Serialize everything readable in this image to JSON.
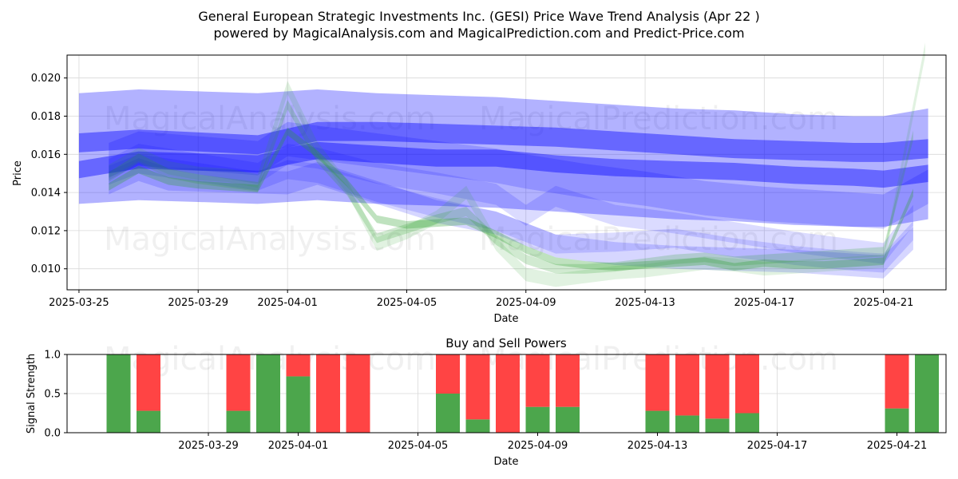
{
  "title": "General European Strategic Investments Inc. (GESI) Price Wave Trend Analysis (Apr 22 )",
  "subtitle": "powered by MagicalAnalysis.com and MagicalPrediction.com and Predict-Price.com",
  "watermarks": [
    "MagicalAnalysis.com",
    "MagicalPrediction.com"
  ],
  "colors": {
    "blue": "#0000ff",
    "green": "#2ca02c",
    "buy": "#4ca64c",
    "sell": "#ff4444"
  },
  "chart_data": [
    {
      "type": "area",
      "xlabel": "Date",
      "ylabel": "Price",
      "xlim": [
        -0.4,
        29.1
      ],
      "ylim": [
        0.0089,
        0.0212
      ],
      "x_tick_days": [
        0,
        4,
        7,
        11,
        15,
        19,
        23,
        27
      ],
      "x_tick_labels": [
        "2025-03-25",
        "2025-03-29",
        "2025-04-01",
        "2025-04-05",
        "2025-04-09",
        "2025-04-13",
        "2025-04-17",
        "2025-04-21"
      ],
      "y_ticks": [
        0.01,
        0.012,
        0.014,
        0.016,
        0.018,
        0.02
      ],
      "y_tick_labels": [
        "0.010",
        "0.012",
        "0.014",
        "0.016",
        "0.018",
        "0.020"
      ],
      "grid": true,
      "blue_bands": [
        {
          "x": [
            0,
            2,
            6,
            8,
            10,
            12,
            14,
            16,
            18,
            20,
            22,
            24,
            26,
            27,
            28.5
          ],
          "center": [
            0.0166,
            0.0168,
            0.0165,
            0.0172,
            0.0172,
            0.0171,
            0.017,
            0.0169,
            0.0167,
            0.0165,
            0.0163,
            0.0162,
            0.0161,
            0.0161,
            0.0163
          ],
          "width": 0.001
        },
        {
          "x": [
            0,
            2,
            6,
            7,
            8,
            10,
            12,
            14,
            16,
            18,
            20,
            22,
            24,
            26,
            27,
            28.5
          ],
          "center": [
            0.0152,
            0.0157,
            0.0155,
            0.0159,
            0.0162,
            0.016,
            0.0158,
            0.0158,
            0.0155,
            0.0153,
            0.0152,
            0.0151,
            0.0149,
            0.0148,
            0.0147,
            0.015
          ],
          "width": 0.0009
        },
        {
          "x": [
            0,
            2,
            4,
            6,
            8,
            10,
            12,
            14,
            16,
            18,
            20,
            22,
            24,
            26,
            27,
            28.5
          ],
          "center": [
            0.0163,
            0.0165,
            0.0164,
            0.0163,
            0.0165,
            0.0163,
            0.0162,
            0.0161,
            0.0159,
            0.0157,
            0.0155,
            0.0154,
            0.0152,
            0.0151,
            0.0151,
            0.0155
          ],
          "width": 0.0058
        },
        {
          "x": [
            1,
            2,
            6,
            7,
            8,
            10,
            12,
            14,
            15,
            17,
            19,
            21,
            23,
            25,
            27,
            28.5
          ],
          "center": [
            0.0157,
            0.0163,
            0.0158,
            0.0168,
            0.0166,
            0.0162,
            0.0158,
            0.0154,
            0.0151,
            0.0146,
            0.0142,
            0.0137,
            0.0134,
            0.0132,
            0.013,
            0.0143
          ],
          "width": 0.0018
        },
        {
          "x": [
            1,
            2,
            6,
            7,
            8,
            10,
            12,
            14,
            15,
            16,
            18,
            20,
            22,
            24,
            26,
            27,
            28
          ],
          "center": [
            0.0152,
            0.016,
            0.015,
            0.016,
            0.0158,
            0.015,
            0.0145,
            0.0139,
            0.0128,
            0.0138,
            0.0128,
            0.0124,
            0.0119,
            0.0114,
            0.011,
            0.0108,
            0.0128
          ],
          "width": 0.0011
        },
        {
          "x": [
            1,
            2,
            6,
            7,
            8,
            10,
            12,
            14,
            16,
            18,
            20,
            22,
            24,
            26,
            27,
            28
          ],
          "center": [
            0.0149,
            0.0155,
            0.0146,
            0.0152,
            0.015,
            0.014,
            0.0132,
            0.0125,
            0.0113,
            0.0114,
            0.0116,
            0.0111,
            0.0107,
            0.0104,
            0.0103,
            0.012
          ],
          "width": 0.001
        },
        {
          "x": [
            1,
            2,
            3,
            5,
            7,
            8,
            10,
            12,
            14,
            16,
            18,
            20,
            22,
            24,
            26,
            27,
            28
          ],
          "center": [
            0.0145,
            0.0152,
            0.0147,
            0.0146,
            0.0145,
            0.015,
            0.014,
            0.013,
            0.0124,
            0.0112,
            0.0108,
            0.0106,
            0.0105,
            0.0104,
            0.0102,
            0.0101,
            0.0116
          ],
          "width": 0.0012
        }
      ],
      "green_bands": [
        {
          "x": [
            1,
            2,
            3,
            4,
            5,
            6,
            7,
            8,
            9,
            10,
            11,
            12,
            13,
            14,
            15,
            16,
            17,
            18,
            19,
            20,
            21,
            22,
            23,
            24,
            25,
            26,
            27,
            28
          ],
          "center": [
            0.0143,
            0.0152,
            0.0146,
            0.0144,
            0.0143,
            0.0142,
            0.0172,
            0.016,
            0.0145,
            0.0126,
            0.0123,
            0.0124,
            0.0125,
            0.0118,
            0.011,
            0.0104,
            0.0102,
            0.0101,
            0.0102,
            0.0103,
            0.0104,
            0.0101,
            0.0103,
            0.0102,
            0.0102,
            0.0103,
            0.0104,
            0.014
          ],
          "width": 0.0004
        },
        {
          "x": [
            1,
            2,
            3,
            4,
            5,
            6,
            7,
            8,
            9,
            10,
            11,
            12,
            13,
            14,
            15,
            16,
            17,
            18,
            19,
            20,
            21,
            22,
            23,
            24,
            25,
            26,
            27,
            28
          ],
          "center": [
            0.0148,
            0.0158,
            0.015,
            0.0147,
            0.0145,
            0.0143,
            0.0186,
            0.0158,
            0.0141,
            0.0116,
            0.0121,
            0.0126,
            0.013,
            0.0115,
            0.0105,
            0.01,
            0.01,
            0.0101,
            0.0103,
            0.0105,
            0.0106,
            0.0104,
            0.0105,
            0.0106,
            0.0107,
            0.0108,
            0.0109,
            0.017
          ],
          "width": 0.0005
        },
        {
          "x": [
            1,
            2,
            3,
            4,
            5,
            6,
            7,
            8,
            9,
            10,
            11,
            12,
            13,
            14,
            15,
            16,
            17,
            18,
            19,
            20,
            21,
            22,
            23,
            24,
            25,
            26,
            27,
            28.4
          ],
          "center": [
            0.0151,
            0.016,
            0.0153,
            0.015,
            0.0149,
            0.0146,
            0.0195,
            0.0163,
            0.0143,
            0.0113,
            0.0119,
            0.0127,
            0.014,
            0.0113,
            0.0097,
            0.0094,
            0.0096,
            0.0098,
            0.0099,
            0.0101,
            0.0103,
            0.0102,
            0.01,
            0.0101,
            0.0102,
            0.0103,
            0.0104,
            0.0215
          ],
          "width": 0.0007
        }
      ]
    },
    {
      "type": "bar",
      "title": "Buy and Sell Powers",
      "xlabel": "Date",
      "ylabel": "Signal Strength",
      "ylim": [
        0,
        1
      ],
      "y_ticks": [
        0.0,
        0.5,
        1.0
      ],
      "y_tick_labels": [
        "0.0",
        "0.5",
        "1.0"
      ],
      "x_tick_days": [
        4,
        7,
        11,
        15,
        19,
        23,
        27
      ],
      "x_tick_labels": [
        "2025-03-29",
        "2025-04-01",
        "2025-04-05",
        "2025-04-09",
        "2025-04-13",
        "2025-04-17",
        "2025-04-21"
      ],
      "series": [
        {
          "name": "Buy",
          "days": [
            1,
            2,
            5,
            6,
            7,
            8,
            9,
            12,
            13,
            14,
            15,
            16,
            19,
            20,
            21,
            22,
            23,
            27,
            28
          ],
          "values": [
            1.0,
            0.28,
            0.28,
            1.0,
            0.72,
            0.0,
            0.0,
            0.5,
            0.17,
            0.0,
            0.33,
            0.33,
            0.28,
            0.22,
            0.18,
            0.25,
            0.0,
            0.31,
            1.0
          ]
        },
        {
          "name": "Sell",
          "days": [
            1,
            2,
            5,
            6,
            7,
            8,
            9,
            12,
            13,
            14,
            15,
            16,
            19,
            20,
            21,
            22,
            23,
            27,
            28
          ],
          "values": [
            0.0,
            0.72,
            0.72,
            0.0,
            0.28,
            1.0,
            1.0,
            0.5,
            0.83,
            1.0,
            0.67,
            0.67,
            0.72,
            0.78,
            0.82,
            0.75,
            0.0,
            0.69,
            0.0
          ]
        }
      ]
    }
  ]
}
